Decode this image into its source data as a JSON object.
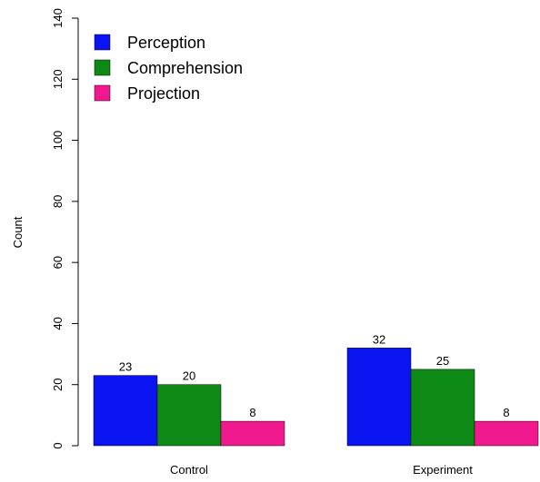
{
  "chart_data": {
    "type": "bar",
    "categories": [
      "Control",
      "Experiment"
    ],
    "series": [
      {
        "name": "Perception",
        "color": "#0a14f0",
        "values": [
          23,
          32
        ]
      },
      {
        "name": "Comprehension",
        "color": "#0c8a15",
        "values": [
          20,
          25
        ]
      },
      {
        "name": "Projection",
        "color": "#f01a8e",
        "values": [
          8,
          8
        ]
      }
    ],
    "data_labels": [
      [
        "23",
        "32"
      ],
      [
        "20",
        "25"
      ],
      [
        "8",
        "8"
      ]
    ],
    "title": "",
    "xlabel": "",
    "ylabel": "Count",
    "ylim": [
      0,
      140
    ],
    "yticks": [
      0,
      20,
      40,
      60,
      80,
      100,
      120,
      140
    ],
    "ytick_labels": [
      "0",
      "20",
      "40",
      "60",
      "80",
      "100",
      "120",
      "140"
    ],
    "grid": false,
    "legend_position": "top-left"
  }
}
